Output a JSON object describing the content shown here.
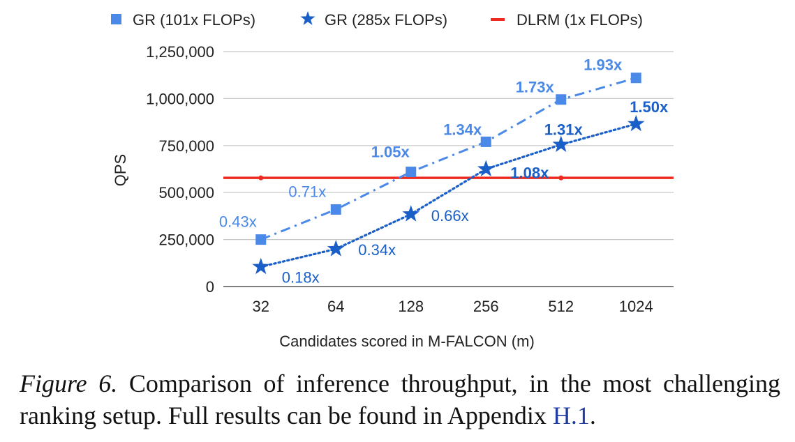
{
  "chart_data": {
    "type": "line",
    "xlabel": "Candidates scored in M-FALCON (m)",
    "ylabel": "QPS",
    "categories": [
      "32",
      "64",
      "128",
      "256",
      "512",
      "1024"
    ],
    "ylim": [
      0,
      1250000
    ],
    "yticks": [
      0,
      250000,
      500000,
      750000,
      1000000,
      1250000
    ],
    "ytick_labels": [
      "0",
      "250,000",
      "500,000",
      "750,000",
      "1,000,000",
      "1,250,000"
    ],
    "grid": true,
    "legend_position": "top",
    "series": [
      {
        "name": "GR (101x FLOPs)",
        "marker": "square",
        "line_style": "dash-dot",
        "color": "#4a89e8",
        "values": [
          250000,
          410000,
          610000,
          770000,
          995000,
          1110000
        ],
        "labels": [
          "0.43x",
          "0.71x",
          "1.05x",
          "1.34x",
          "1.73x",
          "1.93x"
        ]
      },
      {
        "name": "GR (285x FLOPs)",
        "marker": "star",
        "line_style": "dotted",
        "color": "#1a5fc8",
        "values": [
          105000,
          200000,
          385000,
          625000,
          755000,
          865000
        ],
        "labels": [
          "0.18x",
          "0.34x",
          "0.66x",
          "1.08x",
          "1.31x",
          "1.50x"
        ]
      },
      {
        "name": "DLRM (1x FLOPs)",
        "marker": "none",
        "line_style": "solid",
        "color": "#ee2a20",
        "values": [
          578000,
          578000,
          578000,
          578000,
          578000,
          578000
        ],
        "labels": []
      }
    ]
  },
  "caption": {
    "figure_label": "Figure 6.",
    "text": " Comparison of inference throughput, in the most challenging ranking setup. Full results can be found in Appendix ",
    "ref": "H.1",
    "end": "."
  }
}
